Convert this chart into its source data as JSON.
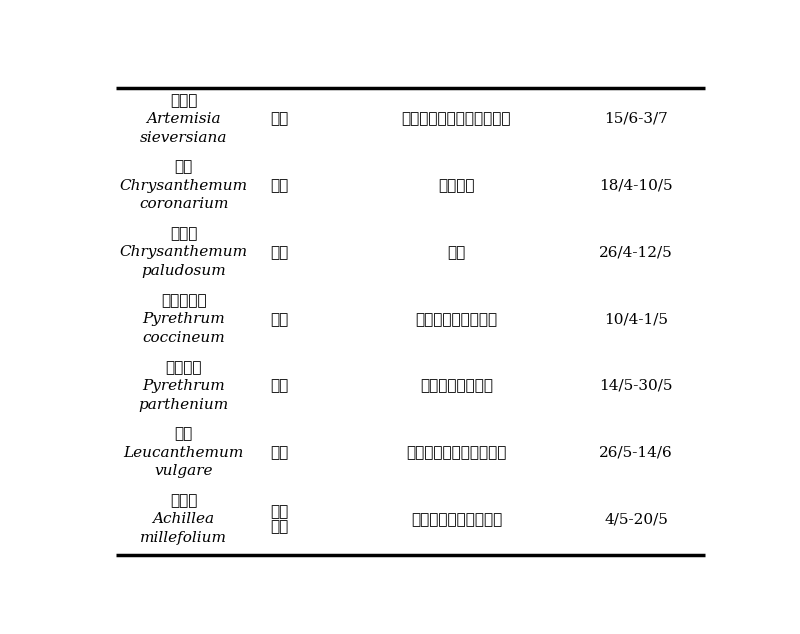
{
  "rows": [
    {
      "chinese_name": "大籽蒿",
      "latin_line1": "Artemisia",
      "latin_line2": "sieversiana",
      "property": "耐旱",
      "property2": "",
      "distribution": "俄罗斯、日本、蒙古和中国",
      "date": "15/6-3/7"
    },
    {
      "chinese_name": "茼蒿",
      "latin_line1": "Chrysanthemum",
      "latin_line2": "coronarium",
      "property": "抗寒",
      "property2": "",
      "distribution": "广泛栽培",
      "date": "18/4-10/5"
    },
    {
      "chinese_name": "白晶菊",
      "latin_line1": "Chrysanthemum",
      "latin_line2": "paludosum",
      "property": "抗寒",
      "property2": "",
      "distribution": "欧洲",
      "date": "26/4-12/5"
    },
    {
      "chinese_name": "红花除虫菊",
      "latin_line1": "Pyrethrum",
      "latin_line2": "coccineum",
      "property": "抗虫",
      "property2": "",
      "distribution": "高加索以及中国等地",
      "date": "10/4-1/5"
    },
    {
      "chinese_name": "短舌匹菊",
      "latin_line1": "Pyrethrum",
      "latin_line2": "parthenium",
      "property": "抗虫",
      "property2": "",
      "distribution": "欧洲以及中国等地",
      "date": "14/5-30/5"
    },
    {
      "chinese_name": "滨菊",
      "latin_line1": "Leucanthemum",
      "latin_line2": "vulgare",
      "property": "抗寒",
      "property2": "",
      "distribution": "欧洲、俄罗斯、日本等地",
      "date": "26/5-14/6"
    },
    {
      "chinese_name": "千叶蓍",
      "latin_line1": "Achillea",
      "latin_line2": "millefolium",
      "property": "耐旱",
      "property2": "抗寒",
      "distribution": "欧洲、亚洲以及北美洲",
      "date": "4/5-20/5"
    }
  ],
  "bg_color": "#ffffff",
  "text_color": "#000000",
  "line_color": "#000000",
  "figsize": [
    8.0,
    6.34
  ],
  "dpi": 100
}
